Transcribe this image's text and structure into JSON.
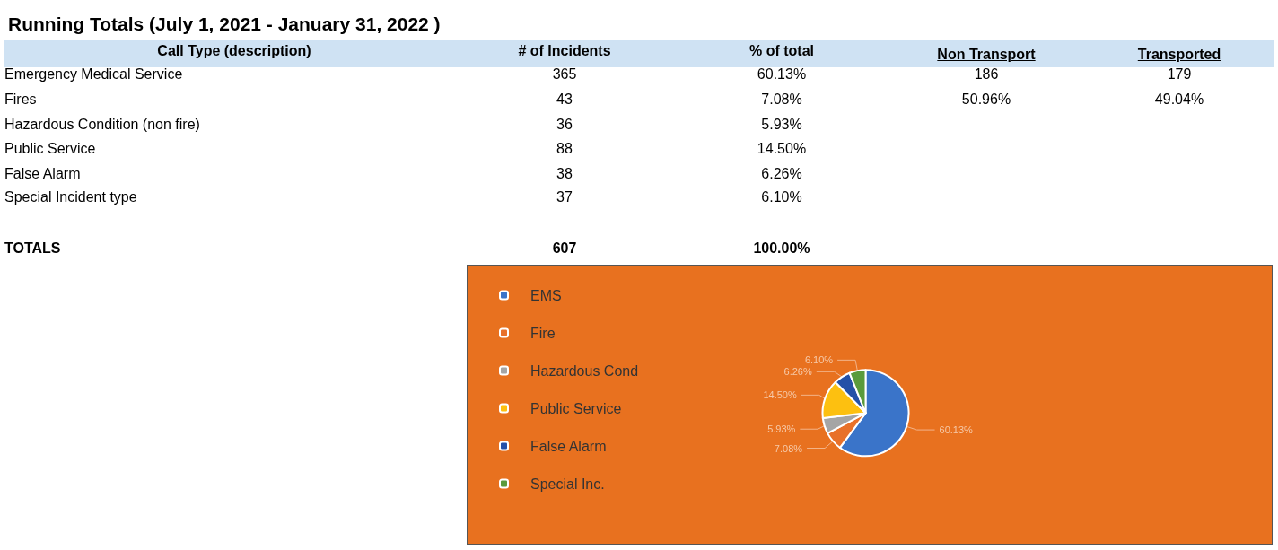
{
  "chart_data": [
    {
      "type": "other",
      "title": "Running Totals (July 1, 2021 - January 31, 2022 )",
      "annotations": [
        "Call Type (description)",
        "# of Incidents",
        "% of total",
        "Non Transport",
        "Transported",
        "Emergency Medical Service",
        "365",
        "60.13%",
        "186",
        "179",
        "Fires",
        "43",
        "7.08%",
        "50.96%",
        "49.04%",
        "Hazardous Condition (non fire)",
        "36",
        "5.93%",
        "Public Service",
        "88",
        "14.50%",
        "False Alarm",
        "38",
        "6.26%",
        "Special Incident type",
        "37",
        "6.10%",
        "TOTALS",
        "607",
        "100.00%"
      ]
    },
    {
      "type": "pie",
      "categories": [
        "EMS",
        "Fire",
        "Hazardous Cond",
        "Public Service",
        "False Alarm",
        "Special Inc."
      ],
      "values": [
        60.13,
        7.08,
        5.93,
        14.5,
        6.26,
        6.1
      ],
      "colors": [
        "#3a74c9",
        "#e8712a",
        "#a5a5a5",
        "#fdc010",
        "#2451a8",
        "#5a9b3c"
      ],
      "value_labels": [
        "60.13%",
        "7.08%",
        "5.93%",
        "14.50%",
        "6.26%",
        "6.10%"
      ],
      "legend": "left"
    }
  ]
}
